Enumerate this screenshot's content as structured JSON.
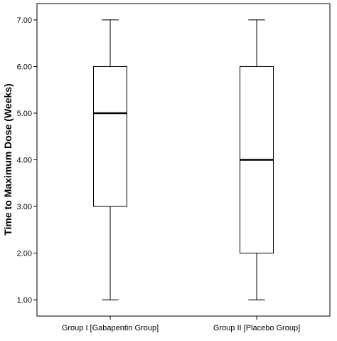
{
  "chart_data": {
    "type": "boxplot",
    "ylabel": "Time to Maximum Dose (Weeks)",
    "xlabel": "",
    "ylim": [
      0.65,
      7.35
    ],
    "yticks": [
      "1.00",
      "2.00",
      "3.00",
      "4.00",
      "5.00",
      "6.00",
      "7.00"
    ],
    "ytick_values": [
      1,
      2,
      3,
      4,
      5,
      6,
      7
    ],
    "categories": [
      "Group I [Gabapentin Group]",
      "Group II [Placebo Group]"
    ],
    "boxes": [
      {
        "min": 1,
        "q1": 3,
        "median": 5,
        "q3": 6,
        "max": 7
      },
      {
        "min": 1,
        "q1": 2,
        "median": 4,
        "q3": 6,
        "max": 7
      }
    ],
    "grid": false,
    "legend": "none"
  }
}
